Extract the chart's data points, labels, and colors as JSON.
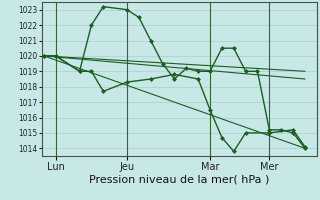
{
  "background_color": "#c8e8e8",
  "grid_color": "#b0cccc",
  "line_color": "#1a5e20",
  "marker_color": "#1a5e20",
  "ylim": [
    1013.5,
    1023.5
  ],
  "yticks": [
    1014,
    1015,
    1016,
    1017,
    1018,
    1019,
    1020,
    1021,
    1022,
    1023
  ],
  "ytick_fontsize": 5.5,
  "xlabel": "Pression niveau de la mer( hPa )",
  "xlabel_fontsize": 8,
  "xtick_labels": [
    "Lun",
    "Jeu",
    "Mar",
    "Mer"
  ],
  "xtick_positions": [
    0.5,
    3.5,
    7.0,
    9.5
  ],
  "xlim": [
    -0.1,
    11.5
  ],
  "series": [
    {
      "x": [
        0,
        0.5,
        1.5,
        2.0,
        2.5,
        3.5,
        4.0,
        4.5,
        5.0,
        5.5,
        6.0,
        6.5,
        7.0,
        7.5,
        8.0,
        8.5,
        9.0,
        9.5,
        10.0,
        10.5,
        11.0
      ],
      "y": [
        1020.0,
        1020.0,
        1019.0,
        1022.0,
        1023.2,
        1023.0,
        1022.5,
        1021.0,
        1019.5,
        1018.5,
        1019.2,
        1019.0,
        1019.0,
        1020.5,
        1020.5,
        1019.0,
        1019.0,
        1015.2,
        1015.2,
        1015.0,
        1014.0
      ],
      "lw": 1.0,
      "marker": "D",
      "ms": 2.0
    },
    {
      "x": [
        0,
        0.5,
        1.5,
        2.0,
        2.5,
        3.5,
        4.5,
        5.5,
        6.5,
        7.0,
        7.5,
        8.0,
        8.5,
        9.5,
        10.5,
        11.0
      ],
      "y": [
        1020.0,
        1020.0,
        1019.0,
        1019.0,
        1017.7,
        1018.3,
        1018.5,
        1018.8,
        1018.5,
        1016.5,
        1014.7,
        1013.8,
        1015.0,
        1015.0,
        1015.2,
        1014.1
      ],
      "lw": 1.0,
      "marker": "D",
      "ms": 2.0
    },
    {
      "x": [
        0,
        11.0
      ],
      "y": [
        1020.0,
        1019.0
      ],
      "lw": 0.8,
      "marker": null,
      "ms": 0
    },
    {
      "x": [
        0,
        11.0
      ],
      "y": [
        1020.0,
        1018.5
      ],
      "lw": 0.8,
      "marker": null,
      "ms": 0
    },
    {
      "x": [
        0,
        11.0
      ],
      "y": [
        1020.0,
        1014.0
      ],
      "lw": 0.8,
      "marker": null,
      "ms": 0
    }
  ],
  "vlines": [
    0.5,
    3.5,
    7.0,
    9.5
  ],
  "vline_color": "#336633",
  "vline_lw": 0.8
}
